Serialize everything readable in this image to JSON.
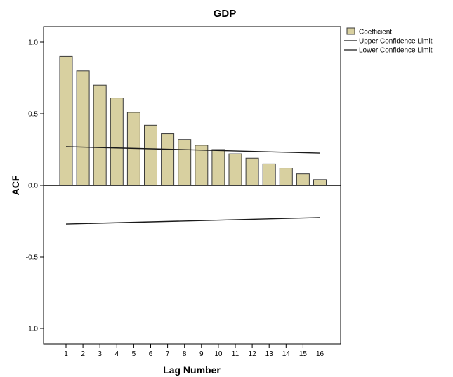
{
  "chart_data": {
    "type": "bar",
    "title": "GDP",
    "xlabel": "Lag Number",
    "ylabel": "ACF",
    "ylim": [
      -1.1,
      1.1
    ],
    "yticks": [
      "1.0",
      "0.5",
      "0.0",
      "-0.5",
      "-1.0"
    ],
    "ytick_values": [
      1.0,
      0.5,
      0.0,
      -0.5,
      -1.0
    ],
    "categories": [
      "1",
      "2",
      "3",
      "4",
      "5",
      "6",
      "7",
      "8",
      "9",
      "10",
      "11",
      "12",
      "13",
      "14",
      "15",
      "16"
    ],
    "series": [
      {
        "name": "Coefficient",
        "values": [
          0.9,
          0.8,
          0.7,
          0.61,
          0.51,
          0.42,
          0.36,
          0.32,
          0.28,
          0.25,
          0.22,
          0.19,
          0.15,
          0.12,
          0.08,
          0.04
        ]
      }
    ],
    "confidence_limits": {
      "upper": {
        "name": "Upper Confidence Limit",
        "start": 0.27,
        "end": 0.225
      },
      "lower": {
        "name": "Lower Confidence Limit",
        "start": -0.27,
        "end": -0.225
      }
    },
    "grid": false,
    "legend_position": "top-right",
    "colors": {
      "bar_fill": "#d8d0a0",
      "bar_stroke": "#3a3a3a",
      "line": "#1a1a1a",
      "axis": "#000000"
    }
  }
}
